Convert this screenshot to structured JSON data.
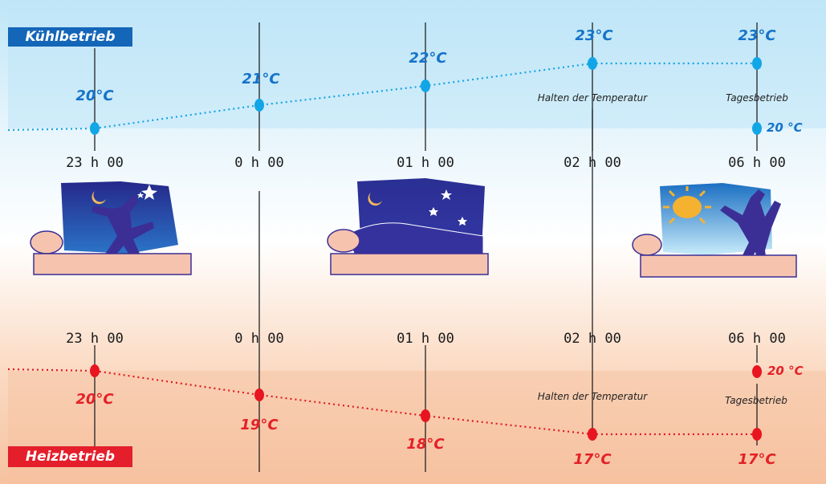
{
  "modes": {
    "cooling": "Kühlbetrieb",
    "heating": "Heizbetrieb"
  },
  "times": [
    "23 h 00",
    "0 h 00",
    "01 h 00",
    "02 h 00",
    "06 h 00"
  ],
  "cooling": {
    "temps": [
      "20°C",
      "21°C",
      "22°C",
      "23°C",
      "23°C"
    ],
    "hold_note": "Halten der Temperatur",
    "day_note": "Tagesbetrieb",
    "day_temp": "20 °C"
  },
  "heating": {
    "temps": [
      "20°C",
      "19°C",
      "18°C",
      "17°C",
      "17°C"
    ],
    "hold_note": "Halten der Temperatur",
    "day_note": "Tagesbetrieb",
    "day_temp": "20 °C"
  },
  "colors": {
    "cool_accent": "#1466b8",
    "cool_point": "#12a6e6",
    "heat_accent": "#e41e2a",
    "heat_point": "#e8141f",
    "night_sky": "#2f2f95",
    "sleeper": "#3b2f96",
    "bed": "#f6c4ae"
  },
  "icons": [
    "moon-icon",
    "star-icon",
    "sun-icon"
  ]
}
